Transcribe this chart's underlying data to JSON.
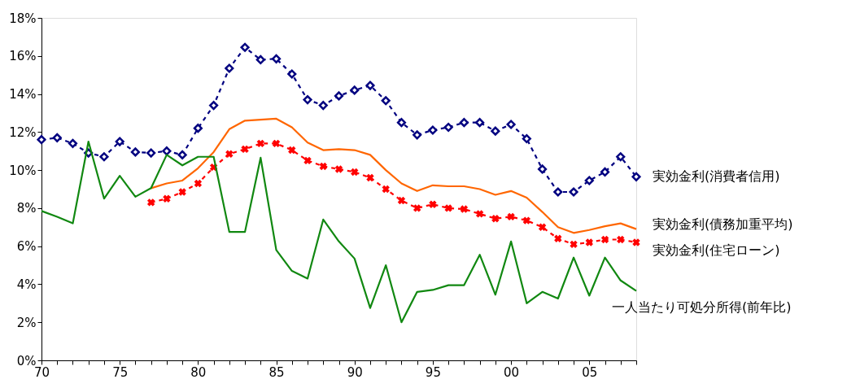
{
  "chart_data": {
    "type": "line",
    "x": [
      1970,
      1971,
      1972,
      1973,
      1974,
      1975,
      1976,
      1977,
      1978,
      1979,
      1980,
      1981,
      1982,
      1983,
      1984,
      1985,
      1986,
      1987,
      1988,
      1989,
      1990,
      1991,
      1992,
      1993,
      1994,
      1995,
      1996,
      1997,
      1998,
      1999,
      2000,
      2001,
      2002,
      2003,
      2004,
      2005,
      2006,
      2007,
      2008
    ],
    "series": [
      {
        "name": "実効金利(消費者信用)",
        "color": "#000080",
        "marker": "diamond",
        "line_style": "dashed",
        "values": [
          11.6,
          11.7,
          11.4,
          10.9,
          10.7,
          11.5,
          10.95,
          10.9,
          11.0,
          10.8,
          12.2,
          13.4,
          15.35,
          16.45,
          15.8,
          15.85,
          15.05,
          13.7,
          13.4,
          13.9,
          14.2,
          14.45,
          13.65,
          12.5,
          11.85,
          12.1,
          12.25,
          12.5,
          12.5,
          12.05,
          12.4,
          11.65,
          10.05,
          8.85,
          8.85,
          9.45,
          9.9,
          10.7,
          9.65
        ]
      },
      {
        "name": "実効金利(債務加重平均)",
        "color": "#ff6600",
        "marker": "none",
        "line_style": "solid",
        "values": [
          null,
          null,
          null,
          null,
          null,
          null,
          null,
          9.05,
          9.3,
          9.45,
          10.1,
          10.95,
          12.15,
          12.6,
          12.65,
          12.7,
          12.25,
          11.45,
          11.05,
          11.1,
          11.05,
          10.8,
          10.0,
          9.3,
          8.9,
          9.2,
          9.15,
          9.15,
          9.0,
          8.7,
          8.9,
          8.55,
          7.8,
          7.0,
          6.7,
          6.85,
          7.05,
          7.2,
          6.9
        ]
      },
      {
        "name": "実効金利(住宅ローン)",
        "color": "#ff0000",
        "marker": "cross",
        "line_style": "dashed",
        "values": [
          null,
          null,
          null,
          null,
          null,
          null,
          null,
          8.3,
          8.5,
          8.85,
          9.3,
          10.15,
          10.85,
          11.1,
          11.4,
          11.4,
          11.05,
          10.5,
          10.2,
          10.05,
          9.9,
          9.6,
          9.0,
          8.4,
          8.0,
          8.2,
          8.0,
          7.95,
          7.7,
          7.45,
          7.55,
          7.35,
          7.0,
          6.4,
          6.1,
          6.2,
          6.35,
          6.35,
          6.2
        ]
      },
      {
        "name": "一人当たり可処分所得(前年比)",
        "color": "#118811",
        "marker": "none",
        "line_style": "solid",
        "values": [
          7.85,
          7.55,
          7.2,
          11.5,
          8.5,
          9.7,
          8.6,
          9.05,
          10.8,
          10.25,
          10.7,
          10.7,
          6.75,
          6.75,
          10.65,
          5.8,
          4.7,
          4.3,
          7.4,
          6.25,
          5.35,
          2.75,
          5.0,
          2.0,
          3.6,
          3.7,
          3.95,
          3.95,
          5.55,
          3.45,
          6.25,
          3.0,
          3.6,
          3.25,
          5.4,
          3.4,
          5.4,
          4.2,
          3.65
        ]
      }
    ],
    "xlim": [
      1970,
      2008
    ],
    "xticks": [
      {
        "value": 1970,
        "label": "70"
      },
      {
        "value": 1971,
        "label": null
      },
      {
        "value": 1972,
        "label": null
      },
      {
        "value": 1973,
        "label": null
      },
      {
        "value": 1974,
        "label": null
      },
      {
        "value": 1975,
        "label": "75"
      },
      {
        "value": 1976,
        "label": null
      },
      {
        "value": 1977,
        "label": null
      },
      {
        "value": 1978,
        "label": null
      },
      {
        "value": 1979,
        "label": null
      },
      {
        "value": 1980,
        "label": "80"
      },
      {
        "value": 1981,
        "label": null
      },
      {
        "value": 1982,
        "label": null
      },
      {
        "value": 1983,
        "label": null
      },
      {
        "value": 1984,
        "label": null
      },
      {
        "value": 1985,
        "label": "85"
      },
      {
        "value": 1986,
        "label": null
      },
      {
        "value": 1987,
        "label": null
      },
      {
        "value": 1988,
        "label": null
      },
      {
        "value": 1989,
        "label": null
      },
      {
        "value": 1990,
        "label": "90"
      },
      {
        "value": 1991,
        "label": null
      },
      {
        "value": 1992,
        "label": null
      },
      {
        "value": 1993,
        "label": null
      },
      {
        "value": 1994,
        "label": null
      },
      {
        "value": 1995,
        "label": "95"
      },
      {
        "value": 1996,
        "label": null
      },
      {
        "value": 1997,
        "label": null
      },
      {
        "value": 1998,
        "label": null
      },
      {
        "value": 1999,
        "label": null
      },
      {
        "value": 2000,
        "label": "00"
      },
      {
        "value": 2001,
        "label": null
      },
      {
        "value": 2002,
        "label": null
      },
      {
        "value": 2003,
        "label": null
      },
      {
        "value": 2004,
        "label": null
      },
      {
        "value": 2005,
        "label": "05"
      },
      {
        "value": 2006,
        "label": null
      },
      {
        "value": 2007,
        "label": null
      },
      {
        "value": 2008,
        "label": null
      }
    ],
    "ylim": [
      0,
      18
    ],
    "yticks": [
      {
        "value": 0,
        "label": "0%"
      },
      {
        "value": 2,
        "label": "2%"
      },
      {
        "value": 4,
        "label": "4%"
      },
      {
        "value": 6,
        "label": "6%"
      },
      {
        "value": 8,
        "label": "8%"
      },
      {
        "value": 10,
        "label": "10%"
      },
      {
        "value": 12,
        "label": "12%"
      },
      {
        "value": 14,
        "label": "14%"
      },
      {
        "value": 16,
        "label": "16%"
      },
      {
        "value": 18,
        "label": "18%"
      }
    ],
    "grid": false,
    "legend": false
  }
}
